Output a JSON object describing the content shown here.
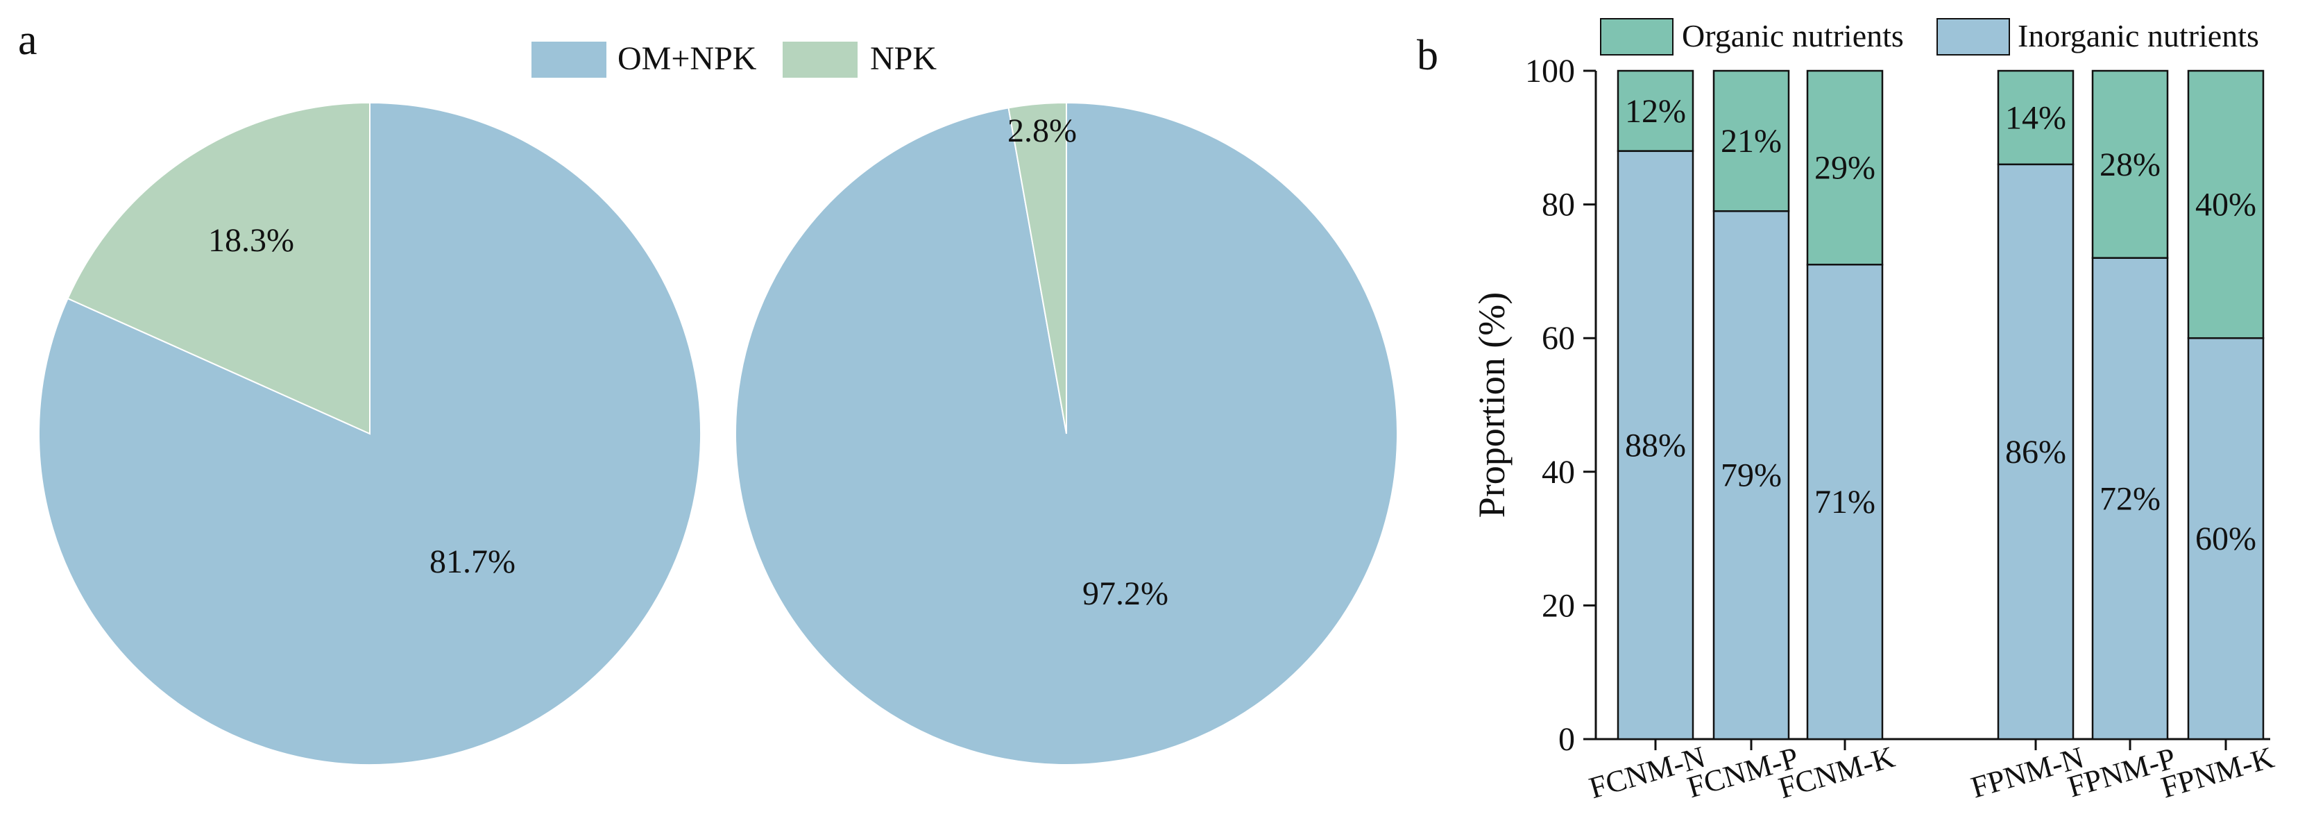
{
  "panels": {
    "a": "a",
    "b": "b"
  },
  "colors": {
    "om_npk": "#9dc3d8",
    "npk": "#b6d4bd",
    "organic": "#7fc3b1",
    "inorganic": "#9dc3d8",
    "axis": "#111111",
    "slice_border": "#ffffff"
  },
  "pie_legend": [
    {
      "label": "OM+NPK",
      "color": "#9dc3d8"
    },
    {
      "label": "NPK",
      "color": "#b6d4bd"
    }
  ],
  "bar_legend": [
    {
      "label": "Organic nutrients",
      "color": "#7fc3b1"
    },
    {
      "label": "Inorganic nutrients",
      "color": "#9dc3d8"
    }
  ],
  "chart_data": [
    {
      "type": "pie",
      "slices": [
        {
          "label": "OM+NPK",
          "value": 81.7,
          "text": "81.7%"
        },
        {
          "label": "NPK",
          "value": 18.3,
          "text": "18.3%"
        }
      ]
    },
    {
      "type": "pie",
      "slices": [
        {
          "label": "OM+NPK",
          "value": 97.2,
          "text": "97.2%"
        },
        {
          "label": "NPK",
          "value": 2.8,
          "text": "2.8%"
        }
      ]
    },
    {
      "type": "bar",
      "stacked": true,
      "categories": [
        "FCNM-N",
        "FCNM-P",
        "FCNM-K",
        "FPNM-N",
        "FPNM-P",
        "FPNM-K"
      ],
      "series": [
        {
          "name": "Inorganic nutrients",
          "values": [
            88,
            79,
            71,
            86,
            72,
            60
          ],
          "labels": [
            "88%",
            "79%",
            "71%",
            "86%",
            "72%",
            "60%"
          ]
        },
        {
          "name": "Organic nutrients",
          "values": [
            12,
            21,
            29,
            14,
            28,
            40
          ],
          "labels": [
            "12%",
            "21%",
            "29%",
            "14%",
            "28%",
            "40%"
          ]
        }
      ],
      "ylabel": "Proportion (%)",
      "ylim": [
        0,
        100
      ],
      "yticks": [
        "0",
        "20",
        "40",
        "60",
        "80",
        "100"
      ],
      "grid": false,
      "legend": "top"
    }
  ]
}
